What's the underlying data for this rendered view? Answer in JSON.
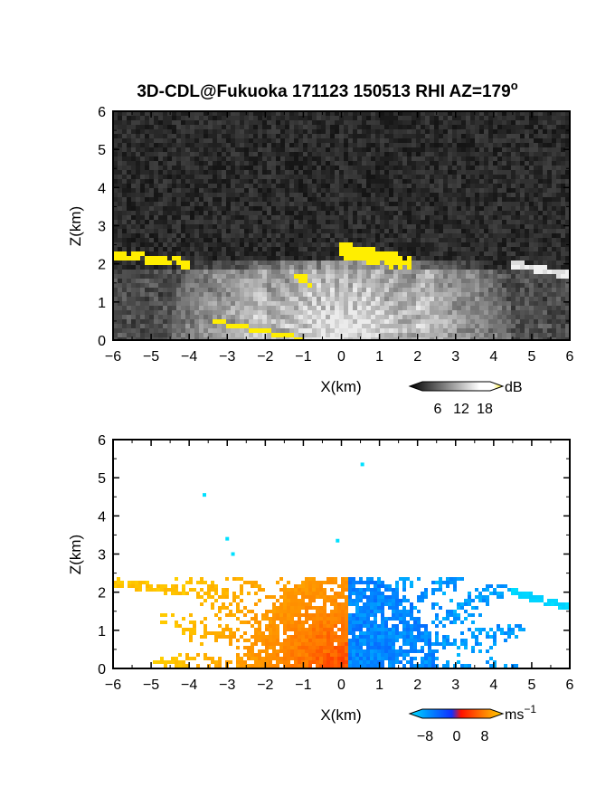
{
  "chart_data": [
    {
      "type": "heatmap",
      "title": "3D-CDL@Fukuoka 171123 150513 RHI AZ=179",
      "title_superscript": "o",
      "xlabel": "X(km)",
      "ylabel": "Z(km)",
      "xlim": [
        -6,
        6
      ],
      "ylim": [
        0,
        6
      ],
      "xticks": [
        "-6",
        "-5",
        "-4",
        "-3",
        "-2",
        "-1",
        "0",
        "1",
        "2",
        "3",
        "4",
        "5",
        "6"
      ],
      "yticks": [
        "0",
        "1",
        "2",
        "3",
        "4",
        "5",
        "6"
      ],
      "variable": "SNR",
      "colorbar": {
        "unit": "dB",
        "ticks": [
          "6",
          "12",
          "18"
        ],
        "range": [
          0,
          20
        ]
      },
      "features": [
        {
          "name": "cloud-base-left",
          "x": [
            -6.0,
            -4.0
          ],
          "z": [
            2.25,
            2.0
          ],
          "value_db": 19
        },
        {
          "name": "cloud-base-center",
          "x": [
            0.0,
            1.8
          ],
          "z": [
            2.35,
            2.0
          ],
          "value_db": 19
        },
        {
          "name": "cloud-patch",
          "x": [
            -1.25,
            -0.75
          ],
          "z": [
            1.7,
            1.5
          ],
          "value_db": 19
        },
        {
          "name": "cloud-base-right",
          "x": [
            4.5,
            6.0
          ],
          "z": [
            2.0,
            1.7
          ],
          "value_db": 12
        },
        {
          "name": "ground-echo-left",
          "x": [
            -3.4,
            -1.0
          ],
          "z": [
            0.5,
            0.02
          ],
          "value_db": 19
        }
      ]
    },
    {
      "type": "heatmap",
      "xlabel": "X(km)",
      "ylabel": "Z(km)",
      "xlim": [
        -6,
        6
      ],
      "ylim": [
        0,
        6
      ],
      "xticks": [
        "-6",
        "-5",
        "-4",
        "-3",
        "-2",
        "-1",
        "0",
        "1",
        "2",
        "3",
        "4",
        "5",
        "6"
      ],
      "yticks": [
        "0",
        "1",
        "2",
        "3",
        "4",
        "5",
        "6"
      ],
      "variable": "radial velocity",
      "colorbar": {
        "unit": "ms",
        "unit_superscript": "−1",
        "ticks": [
          "−8",
          "0",
          "8"
        ],
        "range": [
          -10,
          10
        ]
      },
      "features": [
        {
          "name": "left-sector",
          "x": [
            -4.0,
            0.15
          ],
          "value_ms": 5,
          "description_color": "orange-red"
        },
        {
          "name": "right-sector",
          "x": [
            0.15,
            3.5
          ],
          "value_ms": -6
        },
        {
          "name": "cloud-base-left",
          "x": [
            -6.0,
            -4.0
          ],
          "z": [
            2.25,
            2.0
          ],
          "value_ms": 9
        },
        {
          "name": "cloud-base-right",
          "x": [
            4.5,
            6.0
          ],
          "z": [
            2.0,
            1.6
          ],
          "value_ms": -9
        }
      ]
    }
  ],
  "colors": {
    "snr_high": "#ffee00",
    "vel_neg_strong": "#00c0ff",
    "vel_neg": "#1050ff",
    "vel_zero": "#ff2000",
    "vel_pos": "#ffb000"
  }
}
